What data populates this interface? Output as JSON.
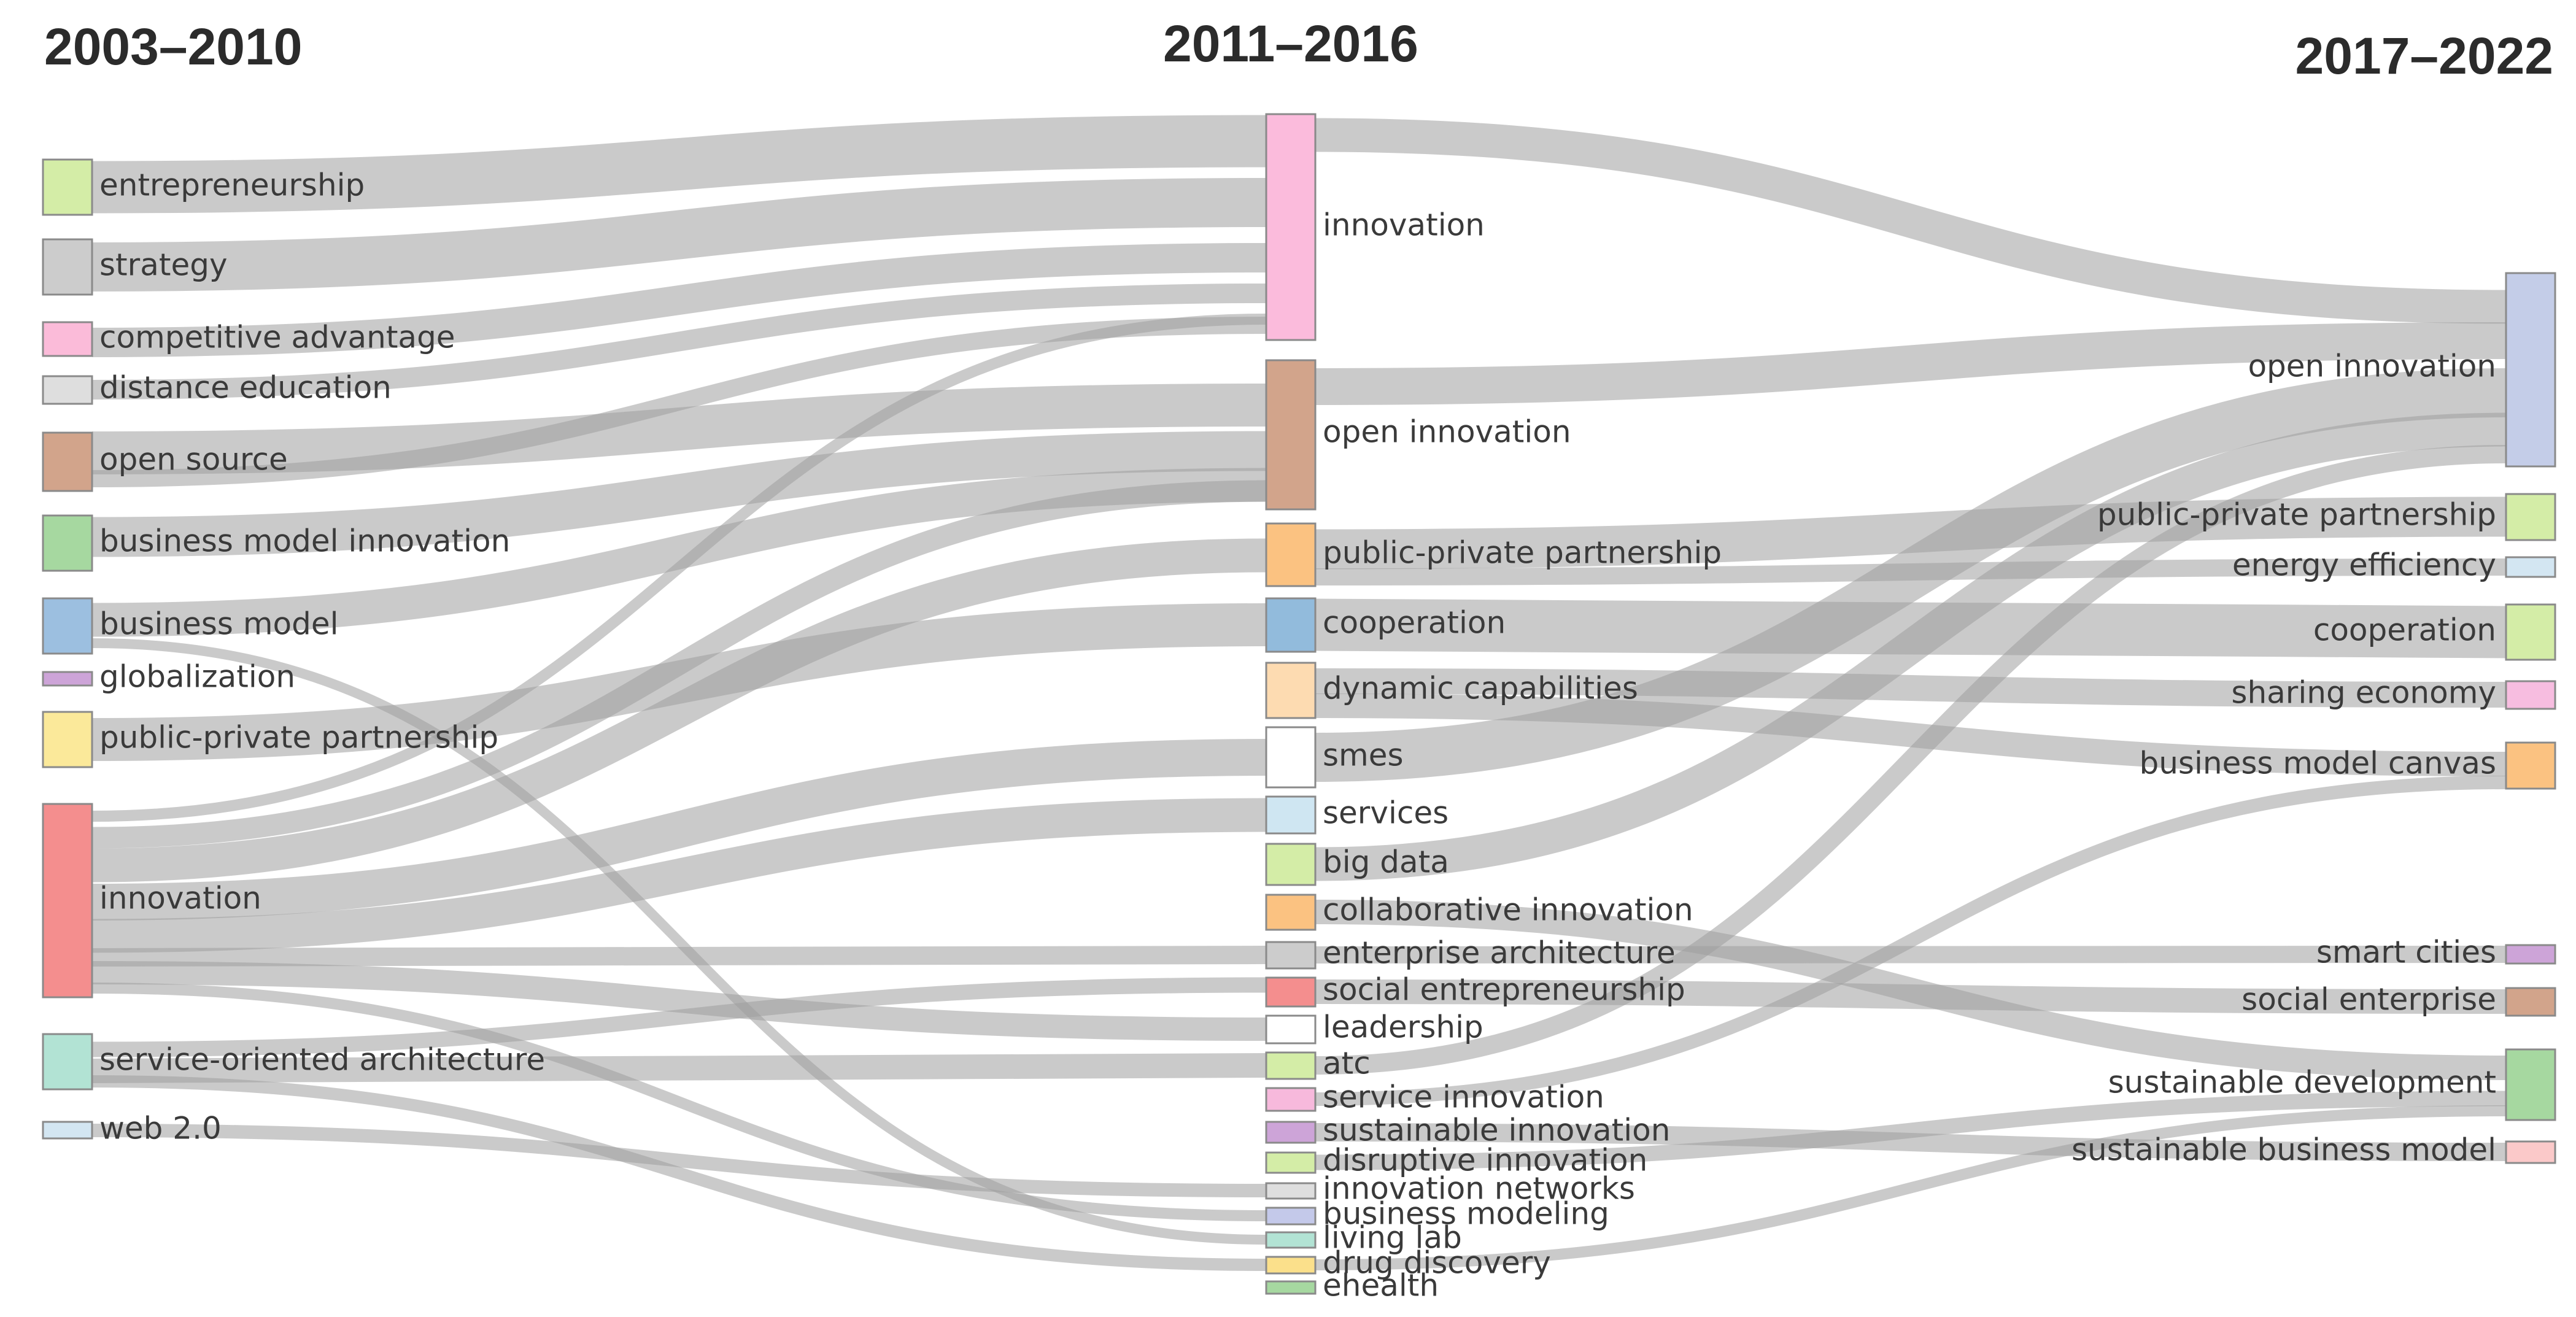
{
  "periods": [
    "2003–2010",
    "2011–2016",
    "2017–2022"
  ],
  "columns": [
    {
      "nodes": [
        {
          "id": "a0",
          "label": "entrepreneurship",
          "color": "#d4eda7"
        },
        {
          "id": "a1",
          "label": "strategy",
          "color": "#cccccc"
        },
        {
          "id": "a2",
          "label": "competitive advantage",
          "color": "#fbbbd9"
        },
        {
          "id": "a3",
          "label": "distance education",
          "color": "#dedede"
        },
        {
          "id": "a4",
          "label": "open source",
          "color": "#d2a48b"
        },
        {
          "id": "a5",
          "label": "business model innovation",
          "color": "#a6d8a0"
        },
        {
          "id": "a6",
          "label": "business model",
          "color": "#9cbfe0"
        },
        {
          "id": "a7",
          "label": "globalization",
          "color": "#cda4d8"
        },
        {
          "id": "a8",
          "label": "public-private partnership",
          "color": "#fbe99a"
        },
        {
          "id": "a9",
          "label": "innovation",
          "color": "#f48e8e"
        },
        {
          "id": "a10",
          "label": "service-oriented architecture",
          "color": "#b2e3d4"
        },
        {
          "id": "a11",
          "label": "web 2.0",
          "color": "#d3e6f2"
        }
      ]
    },
    {
      "nodes": [
        {
          "id": "b0",
          "label": "innovation",
          "color": "#fbbbdc"
        },
        {
          "id": "b1",
          "label": "open innovation",
          "color": "#d2a48b"
        },
        {
          "id": "b2",
          "label": "public-private partnership",
          "color": "#fbc281"
        },
        {
          "id": "b3",
          "label": "cooperation",
          "color": "#92bbdc"
        },
        {
          "id": "b4",
          "label": "dynamic capabilities",
          "color": "#fddbb1"
        },
        {
          "id": "b5",
          "label": "smes",
          "color": "#ffffff"
        },
        {
          "id": "b6",
          "label": "services",
          "color": "#cfe6f2"
        },
        {
          "id": "b7",
          "label": "big data",
          "color": "#d4eda7"
        },
        {
          "id": "b8",
          "label": "collaborative innovation",
          "color": "#fbc281"
        },
        {
          "id": "b9",
          "label": "enterprise architecture",
          "color": "#cccccc"
        },
        {
          "id": "b10",
          "label": "social entrepreneurship",
          "color": "#f48e8e"
        },
        {
          "id": "b11",
          "label": "leadership",
          "color": "#ffffff"
        },
        {
          "id": "b12",
          "label": "atc",
          "color": "#d4eda7"
        },
        {
          "id": "b13",
          "label": "service innovation",
          "color": "#f7b9dc"
        },
        {
          "id": "b14",
          "label": "sustainable innovation",
          "color": "#cda4d8"
        },
        {
          "id": "b15",
          "label": "disruptive innovation",
          "color": "#d4eda7"
        },
        {
          "id": "b16",
          "label": "innovation networks",
          "color": "#dedede"
        },
        {
          "id": "b17",
          "label": "business modeling",
          "color": "#c4c9ea"
        },
        {
          "id": "b18",
          "label": "living lab",
          "color": "#b2e3d4"
        },
        {
          "id": "b19",
          "label": "drug discovery",
          "color": "#fbe08b"
        },
        {
          "id": "b20",
          "label": "ehealth",
          "color": "#a6d8a0"
        }
      ]
    },
    {
      "nodes": [
        {
          "id": "c0",
          "label": "open innovation",
          "color": "#c4cde8"
        },
        {
          "id": "c1",
          "label": "public-private partnership",
          "color": "#d4eda7"
        },
        {
          "id": "c2",
          "label": "energy efficiency",
          "color": "#d3e6f2"
        },
        {
          "id": "c3",
          "label": "cooperation",
          "color": "#d4eda7"
        },
        {
          "id": "c4",
          "label": "sharing economy",
          "color": "#f7bde0"
        },
        {
          "id": "c5",
          "label": "business model canvas",
          "color": "#fbc281"
        },
        {
          "id": "c6",
          "label": "smart cities",
          "color": "#cda4d8"
        },
        {
          "id": "c7",
          "label": "social enterprise",
          "color": "#d2a48b"
        },
        {
          "id": "c8",
          "label": "sustainable development",
          "color": "#a6d8a0"
        },
        {
          "id": "c9",
          "label": "sustainable business model",
          "color": "#fbc9c9"
        }
      ]
    }
  ]
}
